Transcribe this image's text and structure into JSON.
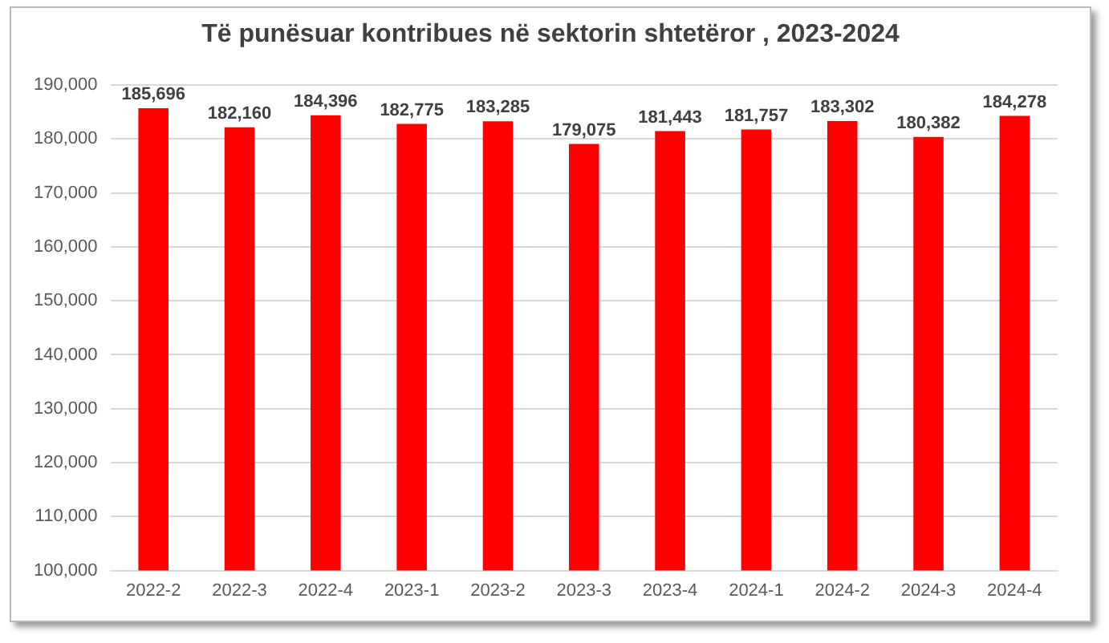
{
  "chart_data": {
    "type": "bar",
    "title": "Të punësuar kontribues në sektorin shtetëror , 2023-2024",
    "categories": [
      "2022-2",
      "2022-3",
      "2022-4",
      "2023-1",
      "2023-2",
      "2023-3",
      "2023-4",
      "2024-1",
      "2024-2",
      "2024-3",
      "2024-4"
    ],
    "values": [
      185696,
      182160,
      184396,
      182775,
      183285,
      179075,
      181443,
      181757,
      183302,
      180382,
      184278
    ],
    "value_labels": [
      "185,696",
      "182,160",
      "184,396",
      "182,775",
      "183,285",
      "179,075",
      "181,443",
      "181,757",
      "183,302",
      "180,382",
      "184,278"
    ],
    "color": "#ff0000",
    "ylim": [
      100000,
      190000
    ],
    "yticks": [
      {
        "value": 100000,
        "label": "100,000"
      },
      {
        "value": 110000,
        "label": "110,000"
      },
      {
        "value": 120000,
        "label": "120,000"
      },
      {
        "value": 130000,
        "label": "130,000"
      },
      {
        "value": 140000,
        "label": "140,000"
      },
      {
        "value": 150000,
        "label": "150,000"
      },
      {
        "value": 160000,
        "label": "160,000"
      },
      {
        "value": 170000,
        "label": "170,000"
      },
      {
        "value": 180000,
        "label": "180,000"
      },
      {
        "value": 190000,
        "label": "190,000"
      }
    ],
    "grid": "y",
    "legend": false
  }
}
